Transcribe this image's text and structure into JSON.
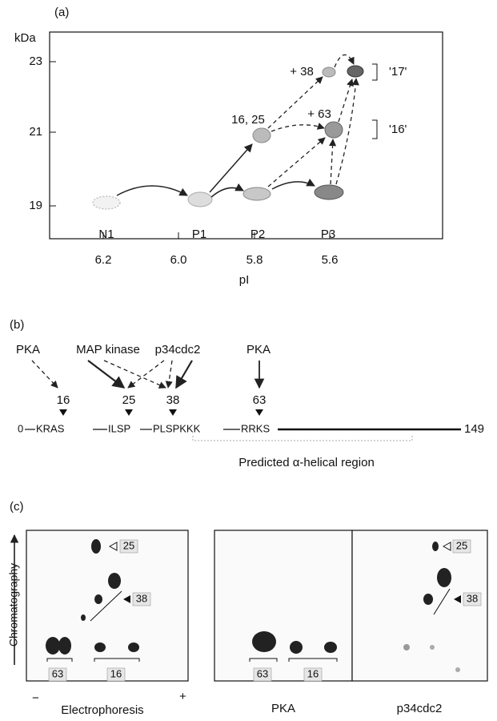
{
  "panel_a": {
    "label": "(a)",
    "y_axis_label": "kDa",
    "y_ticks": [
      "23",
      "21",
      "19"
    ],
    "x_ticks": [
      "6.2",
      "6.0",
      "5.8",
      "5.6"
    ],
    "x_axis_label": "pI",
    "spot_labels": [
      "N1",
      "P1",
      "P2",
      "P3"
    ],
    "annotations": [
      "16, 25",
      "+ 38",
      "+ 63"
    ],
    "brackets": [
      "'17'",
      "'16'"
    ]
  },
  "panel_b": {
    "label": "(b)",
    "kinases": [
      "PKA",
      "MAP kinase",
      "p34cdc2",
      "PKA"
    ],
    "sites": [
      "16",
      "25",
      "38",
      "63"
    ],
    "sequence": {
      "start": "0",
      "motifs": [
        "KRAS",
        "ILSP",
        "PLSPKKK",
        "RRKS"
      ],
      "end": "149"
    },
    "region": "Predicted α-helical region"
  },
  "panel_c": {
    "label": "(c)",
    "y_axis_label": "Chromatography",
    "x_axis_label": "Electrophoresis",
    "minus": "−",
    "plus": "+",
    "left_labels": [
      "25",
      "38",
      "63",
      "16"
    ],
    "middle_caption": "PKA",
    "middle_labels": [
      "63",
      "16"
    ],
    "right_caption": "p34cdc2",
    "right_labels": [
      "25",
      "38"
    ]
  }
}
